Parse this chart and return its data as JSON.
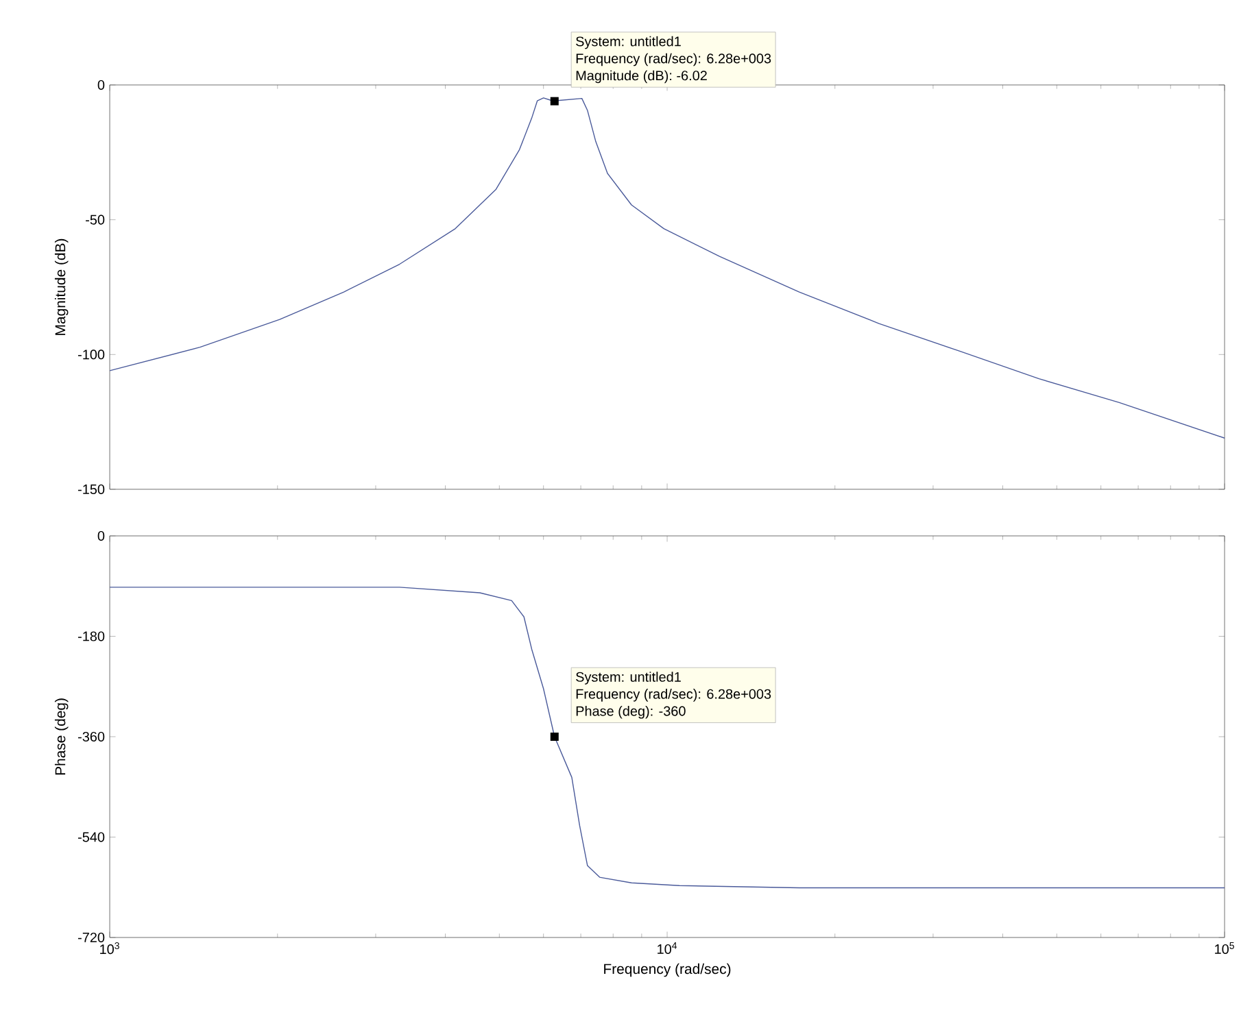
{
  "chart_data": [
    {
      "type": "line",
      "ylabel": "Magnitude (dB)",
      "log": "x",
      "tick_labels": "y",
      "color": "#4a5a9a",
      "xlim": [
        1000,
        100000
      ],
      "xticks": [
        {
          "value": 1000,
          "label": null
        },
        {
          "value": 10000,
          "label": null
        },
        {
          "value": 100000,
          "label": null
        }
      ],
      "ylim": [
        -150,
        0
      ],
      "yticks": [
        -150,
        -100,
        -50,
        0
      ],
      "x": [
        1000,
        1452,
        2018,
        2630,
        3311,
        4169,
        4932,
        5433,
        5715,
        5848,
        6000,
        6209,
        6280,
        6353,
        7031,
        7194,
        7447,
        7816,
        8630,
        9863,
        12417,
        17258,
        23988,
        33420,
        46452,
        64714,
        100000
      ],
      "values": [
        -106,
        -97.3,
        -87,
        -76.8,
        -66.5,
        -53.3,
        -38.7,
        -24,
        -12.3,
        -5.9,
        -4.8,
        -5.8,
        -6.02,
        -5.8,
        -5,
        -9.4,
        -21,
        -32.8,
        -44.5,
        -53.3,
        -63.6,
        -76.8,
        -88.5,
        -98.7,
        -109,
        -117.8,
        -131
      ],
      "annotations": [
        "System: untitled1",
        "Frequency (rad/sec): 6.28e+003",
        {
          "text": "Magnitude (dB): -6.02",
          "x": 6280,
          "y": -6.02
        }
      ]
    },
    {
      "type": "line",
      "xlabel": "Frequency (rad/sec)",
      "ylabel": "Phase (deg)",
      "log": "x",
      "color": "#4a5a9a",
      "xlim": [
        1000,
        100000
      ],
      "xticks": [
        {
          "value": 1000,
          "label": "10$^{3}$"
        },
        {
          "value": 10000,
          "label": "10$^{4}$"
        },
        {
          "value": 100000,
          "label": "10$^{5}$"
        }
      ],
      "ylim": [
        -720,
        0
      ],
      "yticks": [
        -720,
        -540,
        -360,
        -180,
        0
      ],
      "x": [
        1000,
        2000,
        3311,
        4613,
        5260,
        5534,
        5715,
        6000,
        6280,
        6745,
        6966,
        7194,
        7568,
        8630,
        10520,
        17258,
        40000,
        100000
      ],
      "values": [
        -92,
        -92,
        -92,
        -102,
        -116,
        -145,
        -203,
        -274,
        -360,
        -433,
        -519,
        -591,
        -612,
        -622,
        -627,
        -631,
        -631,
        -631
      ],
      "annotations": [
        "System: untitled1",
        "Frequency (rad/sec): 6.28e+003",
        {
          "text": "Phase (deg): -360",
          "x": 6280,
          "y": -360
        }
      ]
    }
  ]
}
